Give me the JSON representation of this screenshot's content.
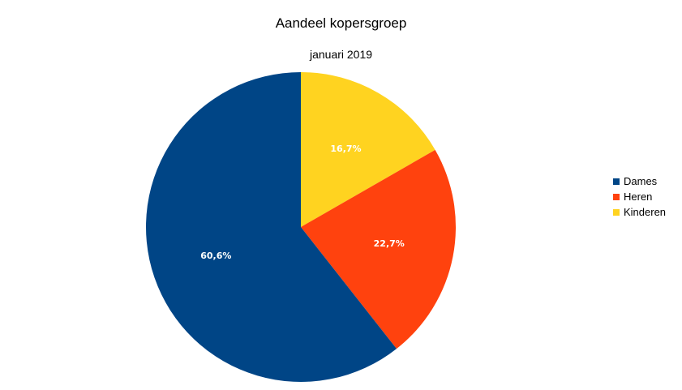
{
  "chart_data": {
    "type": "pie",
    "title": "Aandeel kopersgroep",
    "subtitle": "januari 2019",
    "categories": [
      "Kinderen",
      "Heren",
      "Dames"
    ],
    "values": [
      16.7,
      22.7,
      60.6
    ],
    "value_labels": [
      "16,7%",
      "22,7%",
      "60,6%"
    ],
    "colors": [
      "#ffd320",
      "#ff420e",
      "#004586"
    ],
    "legend": {
      "position": "right",
      "entries": [
        {
          "label": "Dames",
          "color": "#004586"
        },
        {
          "label": "Heren",
          "color": "#ff420e"
        },
        {
          "label": "Kinderen",
          "color": "#ffd320"
        }
      ]
    }
  }
}
